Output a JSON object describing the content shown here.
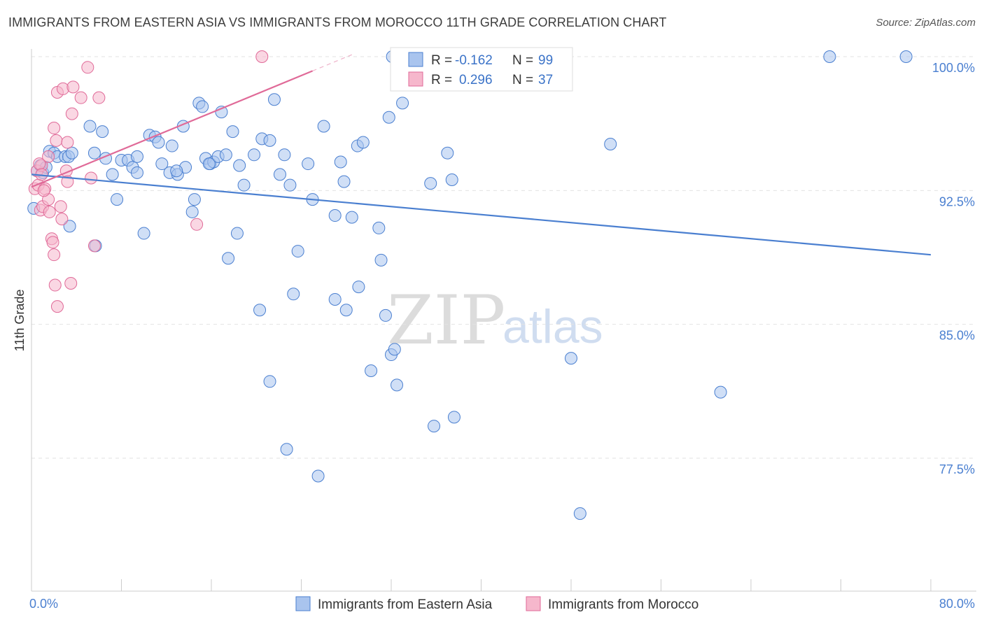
{
  "title": "IMMIGRANTS FROM EASTERN ASIA VS IMMIGRANTS FROM MOROCCO 11TH GRADE CORRELATION CHART",
  "source": "Source: ZipAtlas.com",
  "watermark": {
    "zip": "ZIP",
    "atlas": "atlas"
  },
  "colors": {
    "blue": "#4a7fd0",
    "blue_fill": "#a9c4ee",
    "pink": "#e06a98",
    "pink_fill": "#f6b7cc"
  },
  "legend": {
    "r_label": "R =",
    "n_label": "N =",
    "rows": [
      {
        "r": "-0.162",
        "n": "99"
      },
      {
        "r": "0.296",
        "n": "37"
      }
    ]
  },
  "chart_data": {
    "type": "scatter",
    "title": "IMMIGRANTS FROM EASTERN ASIA VS IMMIGRANTS FROM MOROCCO 11TH GRADE CORRELATION CHART",
    "xlabel": "",
    "ylabel": "11th Grade",
    "xlim": [
      0,
      80
    ],
    "ylim": [
      70,
      100.7
    ],
    "x_tick_labels": [
      "0.0%",
      "80.0%"
    ],
    "y_ticks": [
      {
        "value": 100,
        "label": "100.0%"
      },
      {
        "value": 92.5,
        "label": "92.5%"
      },
      {
        "value": 85,
        "label": "85.0%"
      },
      {
        "value": 77.5,
        "label": "77.5%"
      }
    ],
    "legend_placement": "top-center",
    "grid": true,
    "series": [
      {
        "name": "Immigrants from Eastern Asia",
        "color": "#4a7fd0",
        "trend": {
          "x": [
            0,
            80
          ],
          "y": [
            93.4,
            88.9
          ]
        },
        "points": [
          [
            0.2,
            91.5
          ],
          [
            0.5,
            93.6
          ],
          [
            0.8,
            93.9
          ],
          [
            1.0,
            93.5
          ],
          [
            1.3,
            93.8
          ],
          [
            1.6,
            94.7
          ],
          [
            2.0,
            94.6
          ],
          [
            2.3,
            94.4
          ],
          [
            3.0,
            94.4
          ],
          [
            3.3,
            94.4
          ],
          [
            3.6,
            94.6
          ],
          [
            3.4,
            90.5
          ],
          [
            5.2,
            96.1
          ],
          [
            5.6,
            94.6
          ],
          [
            6.3,
            95.8
          ],
          [
            6.6,
            94.3
          ],
          [
            7.2,
            93.4
          ],
          [
            7.6,
            92.0
          ],
          [
            8.0,
            94.2
          ],
          [
            8.6,
            94.2
          ],
          [
            9.0,
            93.8
          ],
          [
            9.4,
            93.5
          ],
          [
            10.0,
            90.1
          ],
          [
            10.5,
            95.6
          ],
          [
            11.0,
            95.5
          ],
          [
            11.3,
            95.2
          ],
          [
            11.6,
            94.0
          ],
          [
            12.3,
            93.5
          ],
          [
            12.5,
            95.0
          ],
          [
            13.0,
            93.4
          ],
          [
            13.5,
            96.1
          ],
          [
            13.7,
            93.8
          ],
          [
            14.3,
            91.3
          ],
          [
            14.5,
            92.0
          ],
          [
            14.9,
            97.4
          ],
          [
            15.2,
            97.2
          ],
          [
            15.5,
            94.3
          ],
          [
            15.9,
            94.0
          ],
          [
            16.2,
            94.1
          ],
          [
            16.6,
            94.4
          ],
          [
            16.9,
            96.9
          ],
          [
            17.3,
            94.5
          ],
          [
            17.9,
            95.8
          ],
          [
            18.3,
            90.1
          ],
          [
            18.5,
            93.9
          ],
          [
            18.9,
            92.8
          ],
          [
            19.8,
            94.5
          ],
          [
            20.5,
            95.4
          ],
          [
            21.2,
            95.3
          ],
          [
            21.6,
            97.6
          ],
          [
            22.1,
            93.4
          ],
          [
            22.5,
            94.5
          ],
          [
            23.0,
            92.8
          ],
          [
            23.7,
            89.1
          ],
          [
            24.6,
            94.0
          ],
          [
            25.0,
            92.0
          ],
          [
            26.0,
            96.1
          ],
          [
            27.5,
            94.1
          ],
          [
            27.8,
            93.0
          ],
          [
            27.0,
            91.1
          ],
          [
            28.5,
            91.0
          ],
          [
            29.0,
            95.0
          ],
          [
            29.5,
            95.2
          ],
          [
            30.9,
            90.4
          ],
          [
            31.1,
            88.6
          ],
          [
            31.8,
            96.6
          ],
          [
            32.1,
            100.0
          ],
          [
            33.0,
            97.4
          ],
          [
            34.9,
            100.0
          ],
          [
            35.5,
            92.9
          ],
          [
            37.4,
            93.1
          ],
          [
            37.0,
            94.6
          ],
          [
            17.5,
            88.7
          ],
          [
            20.3,
            85.8
          ],
          [
            22.7,
            78.0
          ],
          [
            21.2,
            81.8
          ],
          [
            23.3,
            86.7
          ],
          [
            25.5,
            76.5
          ],
          [
            27.0,
            86.4
          ],
          [
            28.0,
            85.8
          ],
          [
            29.1,
            87.1
          ],
          [
            30.2,
            82.4
          ],
          [
            31.5,
            85.5
          ],
          [
            32.0,
            83.3
          ],
          [
            32.3,
            83.6
          ],
          [
            32.5,
            81.6
          ],
          [
            35.8,
            79.3
          ],
          [
            37.6,
            79.8
          ],
          [
            48.0,
            83.1
          ],
          [
            51.5,
            95.1
          ],
          [
            61.3,
            81.2
          ],
          [
            71.0,
            100.0
          ],
          [
            77.8,
            100.0
          ],
          [
            48.8,
            74.4
          ],
          [
            5.7,
            89.4
          ],
          [
            12.9,
            93.6
          ],
          [
            15.8,
            94.0
          ],
          [
            9.4,
            94.4
          ]
        ]
      },
      {
        "name": "Immigrants from Morocco",
        "color": "#e06a98",
        "trend": {
          "x": [
            0,
            25.0
          ],
          "y": [
            92.7,
            99.2
          ]
        },
        "points": [
          [
            0.3,
            92.6
          ],
          [
            0.5,
            93.6
          ],
          [
            0.6,
            92.8
          ],
          [
            0.8,
            91.4
          ],
          [
            0.9,
            93.9
          ],
          [
            1.0,
            91.6
          ],
          [
            1.2,
            92.6
          ],
          [
            1.5,
            94.4
          ],
          [
            1.5,
            92.0
          ],
          [
            1.6,
            91.3
          ],
          [
            1.8,
            89.8
          ],
          [
            1.9,
            89.6
          ],
          [
            2.0,
            88.9
          ],
          [
            2.0,
            96.0
          ],
          [
            2.2,
            95.3
          ],
          [
            2.1,
            87.2
          ],
          [
            2.3,
            98.0
          ],
          [
            2.3,
            86.0
          ],
          [
            2.6,
            91.6
          ],
          [
            2.7,
            90.9
          ],
          [
            2.8,
            98.2
          ],
          [
            3.1,
            93.6
          ],
          [
            3.2,
            95.2
          ],
          [
            3.2,
            93.0
          ],
          [
            3.5,
            87.3
          ],
          [
            3.6,
            96.8
          ],
          [
            3.7,
            98.3
          ],
          [
            4.4,
            97.7
          ],
          [
            5.0,
            99.4
          ],
          [
            5.3,
            93.2
          ],
          [
            5.6,
            89.4
          ],
          [
            6.0,
            97.7
          ],
          [
            14.7,
            90.6
          ],
          [
            20.5,
            100.0
          ],
          [
            0.7,
            94.0
          ],
          [
            1.1,
            92.5
          ],
          [
            0.9,
            93.4
          ]
        ]
      }
    ]
  },
  "bottom_legend": [
    "Immigrants from Eastern Asia",
    "Immigrants from Morocco"
  ]
}
